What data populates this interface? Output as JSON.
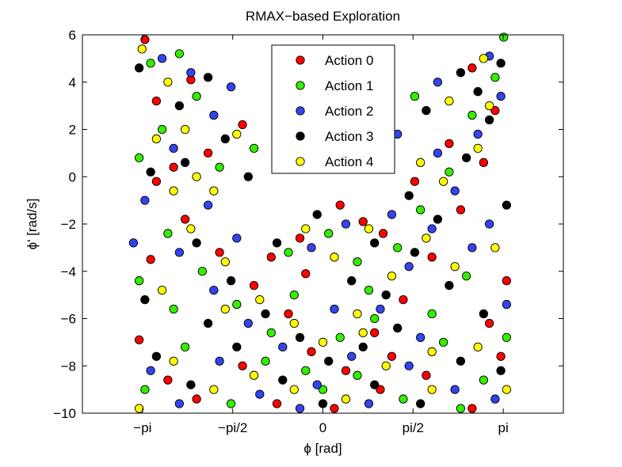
{
  "chart_data": {
    "type": "scatter",
    "title": "RMAX−based Exploration",
    "xlabel": "ϕ [rad]",
    "ylabel": "ϕ' [rad/s]",
    "xlim": [
      -4.1888,
      4.1888
    ],
    "ylim": [
      -10,
      6
    ],
    "xticks": [
      {
        "value": -3.1416,
        "label": "−pi"
      },
      {
        "value": -1.5708,
        "label": "−pi/2"
      },
      {
        "value": 0,
        "label": "0"
      },
      {
        "value": 1.5708,
        "label": "pi/2"
      },
      {
        "value": 3.1416,
        "label": "pi"
      }
    ],
    "yticks": [
      {
        "value": 6,
        "label": "6"
      },
      {
        "value": 4,
        "label": "4"
      },
      {
        "value": 2,
        "label": "2"
      },
      {
        "value": 0,
        "label": "0"
      },
      {
        "value": -2,
        "label": "−2"
      },
      {
        "value": -4,
        "label": "−4"
      },
      {
        "value": -6,
        "label": "−6"
      },
      {
        "value": -8,
        "label": "−8"
      },
      {
        "value": -10,
        "label": "−10"
      }
    ],
    "grid": false,
    "legend_position": "top-center",
    "series": [
      {
        "name": "Action 0",
        "color": "#ff0000",
        "points": [
          [
            -3.1,
            5.8
          ],
          [
            -2.9,
            3.2
          ],
          [
            -2.6,
            0.4
          ],
          [
            -2.9,
            -0.2
          ],
          [
            -2.4,
            -1.8
          ],
          [
            -1.8,
            -3.2
          ],
          [
            -1.2,
            -4.6
          ],
          [
            -0.6,
            -5.8
          ],
          [
            -0.2,
            -7.4
          ],
          [
            0.4,
            -8.2
          ],
          [
            0.9,
            -6.6
          ],
          [
            1.4,
            -5.2
          ],
          [
            1.9,
            -3.4
          ],
          [
            2.4,
            -1.4
          ],
          [
            2.8,
            0.6
          ],
          [
            3.0,
            2.8
          ],
          [
            2.6,
            4.6
          ],
          [
            -3.2,
            -6.9
          ],
          [
            -2.7,
            -8.6
          ],
          [
            -2.2,
            -9.4
          ],
          [
            -1.4,
            -8.0
          ],
          [
            -0.8,
            -9.6
          ],
          [
            0.2,
            -9.8
          ],
          [
            1.0,
            -9.0
          ],
          [
            1.8,
            -8.4
          ],
          [
            2.6,
            -9.8
          ],
          [
            3.1,
            -7.6
          ],
          [
            0.3,
            -1.2
          ],
          [
            0.7,
            -1.9
          ],
          [
            1.05,
            -2.4
          ],
          [
            -0.4,
            -2.6
          ],
          [
            -0.9,
            -3.4
          ],
          [
            2.2,
            1.4
          ],
          [
            1.6,
            -0.2
          ],
          [
            -2.0,
            1.0
          ],
          [
            -1.4,
            2.2
          ],
          [
            -2.3,
            4.1
          ],
          [
            3.2,
            -4.4
          ],
          [
            -3.0,
            -3.5
          ],
          [
            1.2,
            -7.6
          ],
          [
            -0.3,
            -4.1
          ],
          [
            2.9,
            -6.2
          ]
        ]
      },
      {
        "name": "Action 1",
        "color": "#33ee00",
        "points": [
          [
            -3.0,
            4.8
          ],
          [
            -2.5,
            5.2
          ],
          [
            -2.2,
            3.4
          ],
          [
            -3.2,
            0.8
          ],
          [
            -2.7,
            -2.4
          ],
          [
            -2.1,
            -4.0
          ],
          [
            -1.5,
            -5.4
          ],
          [
            -0.9,
            -6.6
          ],
          [
            -0.3,
            -8.2
          ],
          [
            0.3,
            -6.8
          ],
          [
            0.8,
            -4.8
          ],
          [
            1.3,
            -3.0
          ],
          [
            1.7,
            -1.4
          ],
          [
            2.2,
            0.2
          ],
          [
            2.6,
            2.6
          ],
          [
            3.0,
            4.2
          ],
          [
            3.15,
            5.9
          ],
          [
            -3.1,
            -9.0
          ],
          [
            -2.4,
            -7.2
          ],
          [
            -1.6,
            -9.6
          ],
          [
            -1.0,
            -7.8
          ],
          [
            0.0,
            -9.0
          ],
          [
            0.6,
            -8.4
          ],
          [
            1.4,
            -9.4
          ],
          [
            2.1,
            -7.0
          ],
          [
            2.8,
            -8.6
          ],
          [
            3.2,
            -6.8
          ],
          [
            -0.6,
            -3.2
          ],
          [
            0.1,
            -2.4
          ],
          [
            0.6,
            -3.6
          ],
          [
            1.9,
            -5.8
          ],
          [
            2.5,
            -4.2
          ],
          [
            -1.8,
            0.4
          ],
          [
            -2.8,
            2.0
          ],
          [
            -1.2,
            1.2
          ],
          [
            1.0,
            2.6
          ],
          [
            1.6,
            3.4
          ],
          [
            -2.6,
            -5.6
          ],
          [
            -3.2,
            -4.4
          ],
          [
            0.9,
            -6.0
          ],
          [
            -0.5,
            -5.0
          ],
          [
            2.4,
            -9.8
          ]
        ]
      },
      {
        "name": "Action 2",
        "color": "#3344ee",
        "points": [
          [
            -2.8,
            5.0
          ],
          [
            -2.3,
            4.4
          ],
          [
            -1.9,
            2.6
          ],
          [
            -3.1,
            -1.0
          ],
          [
            -2.5,
            -3.2
          ],
          [
            -1.9,
            -4.8
          ],
          [
            -1.3,
            -6.2
          ],
          [
            -0.7,
            -7.2
          ],
          [
            -0.1,
            -8.8
          ],
          [
            0.5,
            -7.6
          ],
          [
            1.0,
            -5.6
          ],
          [
            1.5,
            -3.8
          ],
          [
            1.9,
            -2.2
          ],
          [
            2.3,
            -0.6
          ],
          [
            2.7,
            1.8
          ],
          [
            3.1,
            3.4
          ],
          [
            2.9,
            5.1
          ],
          [
            -3.0,
            -8.2
          ],
          [
            -2.5,
            -9.6
          ],
          [
            -1.8,
            -7.8
          ],
          [
            -1.1,
            -9.2
          ],
          [
            -0.4,
            -9.8
          ],
          [
            0.8,
            -9.6
          ],
          [
            1.5,
            -8.0
          ],
          [
            2.3,
            -9.0
          ],
          [
            3.0,
            -9.4
          ],
          [
            3.2,
            -5.4
          ],
          [
            -0.2,
            -3.0
          ],
          [
            0.4,
            -2.0
          ],
          [
            1.2,
            -1.6
          ],
          [
            2.0,
            1.0
          ],
          [
            2.6,
            -3.0
          ],
          [
            -2.0,
            -1.2
          ],
          [
            -1.6,
            3.8
          ],
          [
            -2.6,
            1.2
          ],
          [
            1.3,
            1.8
          ],
          [
            2.0,
            4.0
          ],
          [
            -3.3,
            -2.8
          ],
          [
            -1.5,
            -2.6
          ],
          [
            0.2,
            -5.6
          ],
          [
            1.7,
            -6.8
          ],
          [
            2.9,
            -2.0
          ]
        ]
      },
      {
        "name": "Action 3",
        "color": "#000000",
        "points": [
          [
            -3.2,
            4.6
          ],
          [
            -2.0,
            4.2
          ],
          [
            -1.7,
            1.6
          ],
          [
            -3.0,
            0.2
          ],
          [
            -2.2,
            -2.8
          ],
          [
            -1.6,
            -4.4
          ],
          [
            -1.0,
            -5.8
          ],
          [
            -0.4,
            -6.8
          ],
          [
            0.1,
            -7.8
          ],
          [
            0.7,
            -7.2
          ],
          [
            1.1,
            -5.0
          ],
          [
            1.6,
            -3.2
          ],
          [
            2.0,
            -1.8
          ],
          [
            2.5,
            0.8
          ],
          [
            2.9,
            2.4
          ],
          [
            3.1,
            4.8
          ],
          [
            2.7,
            3.6
          ],
          [
            -2.9,
            -7.6
          ],
          [
            -2.3,
            -8.8
          ],
          [
            -1.5,
            -7.2
          ],
          [
            -0.7,
            -8.6
          ],
          [
            0.0,
            -9.6
          ],
          [
            0.9,
            -8.8
          ],
          [
            1.7,
            -9.6
          ],
          [
            2.4,
            -7.8
          ],
          [
            3.1,
            -8.2
          ],
          [
            2.8,
            -5.8
          ],
          [
            -0.8,
            -2.8
          ],
          [
            -0.1,
            -1.6
          ],
          [
            0.9,
            -2.8
          ],
          [
            1.5,
            -0.8
          ],
          [
            2.2,
            -4.6
          ],
          [
            -2.4,
            0.6
          ],
          [
            -1.3,
            0.0
          ],
          [
            -2.5,
            3.0
          ],
          [
            1.8,
            2.8
          ],
          [
            2.4,
            4.4
          ],
          [
            -3.1,
            -5.2
          ],
          [
            -2.0,
            -6.2
          ],
          [
            0.5,
            -4.4
          ],
          [
            1.3,
            -6.4
          ],
          [
            3.2,
            -1.2
          ]
        ]
      },
      {
        "name": "Action 4",
        "color": "#ffff00",
        "points": [
          [
            -3.15,
            5.4
          ],
          [
            -2.7,
            4.0
          ],
          [
            -2.4,
            2.0
          ],
          [
            -2.9,
            1.6
          ],
          [
            -2.6,
            -0.6
          ],
          [
            -2.3,
            -2.2
          ],
          [
            -1.7,
            -3.6
          ],
          [
            -1.1,
            -5.2
          ],
          [
            -0.5,
            -6.2
          ],
          [
            0.0,
            -7.0
          ],
          [
            0.6,
            -5.8
          ],
          [
            1.2,
            -4.2
          ],
          [
            1.8,
            -2.6
          ],
          [
            2.1,
            -0.2
          ],
          [
            2.7,
            1.2
          ],
          [
            2.9,
            3.0
          ],
          [
            2.8,
            5.0
          ],
          [
            -3.2,
            -9.8
          ],
          [
            -2.6,
            -7.8
          ],
          [
            -1.9,
            -9.0
          ],
          [
            -1.2,
            -8.4
          ],
          [
            -0.5,
            -9.0
          ],
          [
            0.4,
            -9.4
          ],
          [
            1.1,
            -8.0
          ],
          [
            1.9,
            -9.0
          ],
          [
            2.7,
            -7.2
          ],
          [
            3.2,
            -9.0
          ],
          [
            -0.3,
            -2.2
          ],
          [
            0.2,
            -3.4
          ],
          [
            0.8,
            -2.2
          ],
          [
            1.7,
            0.6
          ],
          [
            2.3,
            -3.8
          ],
          [
            -1.9,
            -0.6
          ],
          [
            -1.5,
            1.8
          ],
          [
            -2.2,
            0.0
          ],
          [
            1.1,
            3.0
          ],
          [
            2.2,
            3.2
          ],
          [
            -2.8,
            -4.8
          ],
          [
            -1.7,
            -5.6
          ],
          [
            0.7,
            -6.6
          ],
          [
            1.9,
            -7.4
          ],
          [
            3.0,
            -3.0
          ]
        ]
      }
    ]
  }
}
